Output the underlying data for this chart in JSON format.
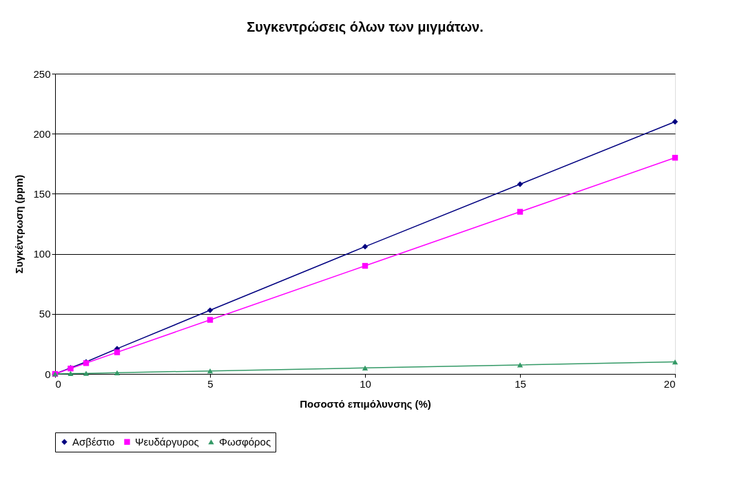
{
  "chart_data": {
    "type": "line",
    "title": "Συγκεντρώσεις όλων των μιγμάτων.",
    "xlabel": "Ποσοστό επιμόλυνσης (%)",
    "ylabel": "Συγκέντρωση (ppm)",
    "x": [
      0,
      0.5,
      1,
      2,
      5,
      10,
      15,
      20
    ],
    "series": [
      {
        "name": "Ασβέστιο",
        "color": "#000080",
        "marker": "diamond",
        "values": [
          0,
          5,
          10,
          21,
          53,
          106,
          158,
          210
        ]
      },
      {
        "name": "Ψευδάργυρος",
        "color": "#ff00ff",
        "marker": "square",
        "values": [
          0,
          4.5,
          9,
          18,
          45,
          90,
          135,
          180
        ]
      },
      {
        "name": "Φωσφόρος",
        "color": "#339966",
        "marker": "triangle",
        "values": [
          0,
          0.3,
          0.5,
          1,
          2.5,
          5,
          7.5,
          10
        ]
      }
    ],
    "xlim": [
      0,
      20
    ],
    "xticks": [
      0,
      5,
      10,
      15,
      20
    ],
    "ylim": [
      0,
      250
    ],
    "yticks": [
      0,
      50,
      100,
      150,
      200,
      250
    ],
    "grid": "y",
    "legend": "bottom",
    "line_style": "solid"
  }
}
